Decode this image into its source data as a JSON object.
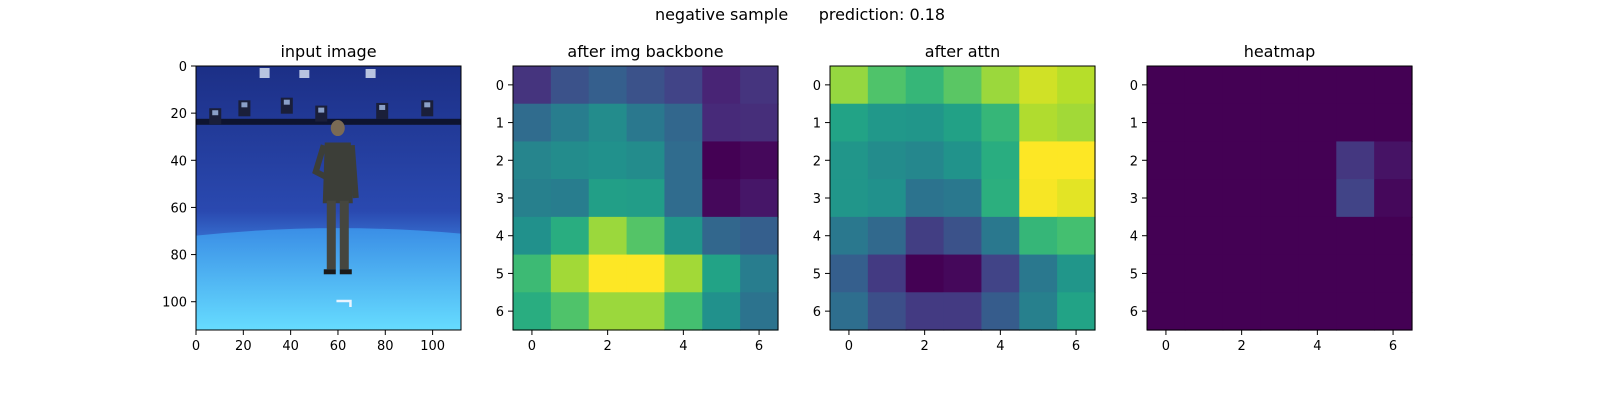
{
  "figure": {
    "title": "negative sample      prediction: 0.18"
  },
  "chart_data": [
    {
      "type": "image",
      "title": "input image",
      "image_description": "person standing in a blue studio room",
      "xticks": [
        0,
        20,
        40,
        60,
        80,
        100
      ],
      "yticks": [
        0,
        20,
        40,
        60,
        80,
        100
      ],
      "xlim": [
        0,
        112
      ],
      "ylim": [
        112,
        0
      ]
    },
    {
      "type": "heatmap",
      "title": "after img backbone",
      "colormap": "viridis",
      "xticks": [
        0,
        2,
        4,
        6
      ],
      "yticks": [
        0,
        1,
        2,
        3,
        4,
        5,
        6
      ],
      "values": [
        [
          0.15,
          0.25,
          0.3,
          0.25,
          0.2,
          0.1,
          0.15
        ],
        [
          0.35,
          0.42,
          0.48,
          0.4,
          0.33,
          0.12,
          0.13
        ],
        [
          0.45,
          0.48,
          0.5,
          0.48,
          0.35,
          0.0,
          0.02
        ],
        [
          0.43,
          0.42,
          0.56,
          0.55,
          0.35,
          0.02,
          0.06
        ],
        [
          0.5,
          0.62,
          0.85,
          0.73,
          0.52,
          0.33,
          0.3
        ],
        [
          0.68,
          0.86,
          1.0,
          1.0,
          0.86,
          0.58,
          0.42
        ],
        [
          0.62,
          0.72,
          0.85,
          0.85,
          0.7,
          0.5,
          0.38
        ]
      ]
    },
    {
      "type": "heatmap",
      "title": "after attn",
      "colormap": "viridis",
      "xticks": [
        0,
        2,
        4,
        6
      ],
      "yticks": [
        0,
        1,
        2,
        3,
        4,
        5,
        6
      ],
      "values": [
        [
          0.84,
          0.72,
          0.66,
          0.74,
          0.85,
          0.93,
          0.89
        ],
        [
          0.58,
          0.53,
          0.52,
          0.57,
          0.66,
          0.88,
          0.86
        ],
        [
          0.52,
          0.48,
          0.46,
          0.51,
          0.62,
          1.0,
          1.0
        ],
        [
          0.52,
          0.5,
          0.38,
          0.4,
          0.63,
          0.99,
          0.96
        ],
        [
          0.4,
          0.34,
          0.18,
          0.25,
          0.4,
          0.66,
          0.7
        ],
        [
          0.3,
          0.17,
          0.0,
          0.02,
          0.2,
          0.4,
          0.52
        ],
        [
          0.36,
          0.24,
          0.17,
          0.17,
          0.29,
          0.43,
          0.58
        ]
      ]
    },
    {
      "type": "heatmap",
      "title": "heatmap",
      "colormap": "viridis",
      "xticks": [
        0,
        2,
        4,
        6
      ],
      "yticks": [
        0,
        1,
        2,
        3,
        4,
        5,
        6
      ],
      "values": [
        [
          0,
          0,
          0,
          0,
          0,
          0,
          0
        ],
        [
          0,
          0,
          0,
          0,
          0,
          0,
          0
        ],
        [
          0,
          0,
          0,
          0,
          0,
          0.16,
          0.05
        ],
        [
          0,
          0,
          0,
          0,
          0,
          0.2,
          0.02
        ],
        [
          0,
          0,
          0,
          0,
          0,
          0,
          0
        ],
        [
          0,
          0,
          0,
          0,
          0,
          0,
          0
        ],
        [
          0,
          0,
          0,
          0,
          0,
          0,
          0
        ]
      ]
    }
  ]
}
